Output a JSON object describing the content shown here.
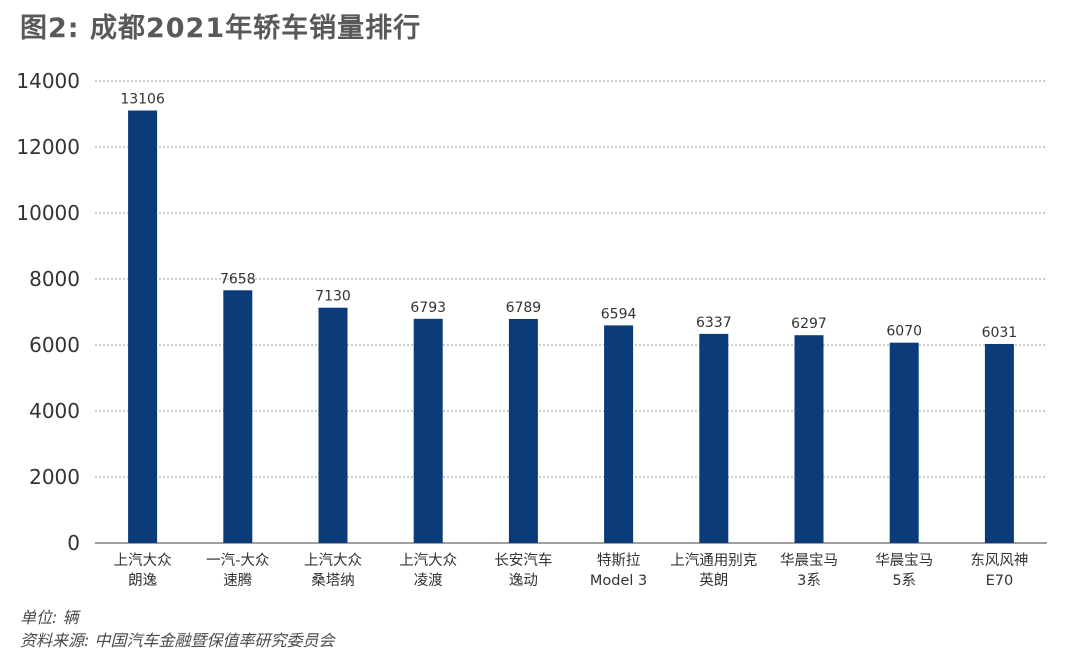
{
  "title": "图2: 成都2021年轿车销量排行",
  "unit_note": "单位: 辆",
  "source_note": "资料来源: 中国汽车金融暨保值率研究委员会",
  "colors": {
    "bar": "#0b3b78",
    "grid": "#9a9a9a",
    "axis_text": "#333333",
    "title": "#58595b"
  },
  "chart_data": {
    "type": "bar",
    "title": "图2: 成都2021年轿车销量排行",
    "xlabel": "",
    "ylabel": "",
    "ylim": [
      0,
      14000
    ],
    "yticks": [
      "0",
      "2000",
      "4000",
      "6000",
      "8000",
      "10000",
      "12000",
      "14000"
    ],
    "grid": true,
    "categories": [
      [
        "上汽大众",
        "朗逸"
      ],
      [
        "一汽-大众",
        "速腾"
      ],
      [
        "上汽大众",
        "桑塔纳"
      ],
      [
        "上汽大众",
        "凌渡"
      ],
      [
        "长安汽车",
        "逸动"
      ],
      [
        "特斯拉",
        "Model 3"
      ],
      [
        "上汽通用别克",
        "英朗"
      ],
      [
        "华晨宝马",
        "3系"
      ],
      [
        "华晨宝马",
        "5系"
      ],
      [
        "东风风神",
        "E70"
      ]
    ],
    "values": [
      13106,
      7658,
      7130,
      6793,
      6789,
      6594,
      6337,
      6297,
      6070,
      6031
    ],
    "data_labels": [
      "13106",
      "7658",
      "7130",
      "6793",
      "6789",
      "6594",
      "6337",
      "6297",
      "6070",
      "6031"
    ]
  }
}
